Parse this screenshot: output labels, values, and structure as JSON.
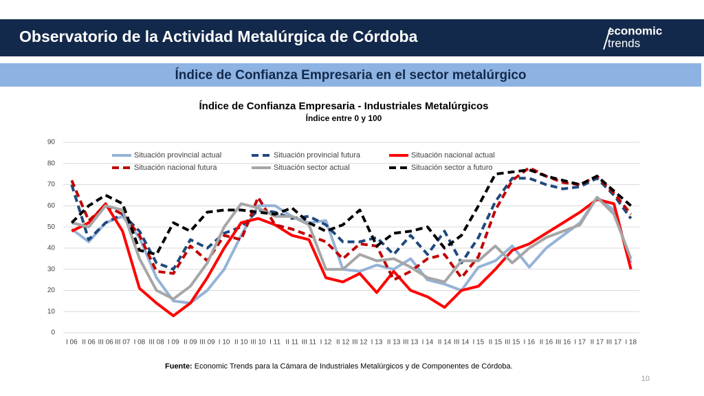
{
  "header": {
    "title": "Observatorio de la Actividad Metalúrgica de Córdoba",
    "logo_line1": "economic",
    "logo_line2": "trends"
  },
  "banner": "Índice de Confianza Empresaria en el sector metalúrgico",
  "chart_data": {
    "type": "line",
    "title": "Índice de Confianza Empresaria - Industriales Metalúrgicos",
    "subtitle": "Índice entre 0 y 100",
    "categories": [
      "I 06",
      "II 06",
      "III 06",
      "III 07",
      "I 08",
      "III 08",
      "I 09",
      "II 09",
      "III 09",
      "I 10",
      "II 10",
      "III 10",
      "I 11",
      "II 11",
      "III 11",
      "I 12",
      "II 12",
      "III 12",
      "I 13",
      "II 13",
      "III 13",
      "I 14",
      "II 14",
      "III 14",
      "I 15",
      "II 15",
      "III 15",
      "I 16",
      "II 16",
      "III 16",
      "I 17",
      "II 17",
      "III 17",
      "I 18"
    ],
    "series": [
      {
        "name": "Situación provincial actual",
        "color": "#95b3d7",
        "dash": false,
        "values": [
          49,
          43,
          52,
          55,
          45,
          26,
          15,
          14,
          20,
          30,
          46,
          60,
          60,
          55,
          52,
          53,
          30,
          29,
          32,
          30,
          35,
          25,
          23,
          20,
          31,
          34,
          41,
          31,
          40,
          46,
          52,
          64,
          58,
          33
        ]
      },
      {
        "name": "Situación provincial futura",
        "color": "#1f497d",
        "dash": true,
        "values": [
          70,
          44,
          52,
          56,
          48,
          33,
          30,
          44,
          40,
          47,
          50,
          58,
          57,
          54,
          55,
          51,
          43,
          43,
          45,
          37,
          46,
          37,
          48,
          33,
          45,
          62,
          73,
          73,
          70,
          68,
          69,
          73,
          65,
          54
        ]
      },
      {
        "name": "Situación nacional actual",
        "color": "#ff0000",
        "dash": false,
        "values": [
          48,
          52,
          61,
          48,
          21,
          14,
          8,
          14,
          26,
          40,
          52,
          54,
          51,
          46,
          44,
          26,
          24,
          28,
          19,
          29,
          20,
          17,
          12,
          20,
          22,
          30,
          39,
          42,
          47,
          52,
          57,
          63,
          61,
          30
        ]
      },
      {
        "name": "Situación nacional futura",
        "color": "#c00000",
        "dash": true,
        "values": [
          72,
          53,
          60,
          56,
          46,
          29,
          28,
          41,
          34,
          46,
          44,
          64,
          51,
          49,
          46,
          43,
          35,
          42,
          41,
          25,
          29,
          35,
          37,
          26,
          36,
          58,
          72,
          78,
          74,
          71,
          70,
          74,
          66,
          56
        ]
      },
      {
        "name": "Situación sector actual",
        "color": "#a6a6a6",
        "dash": false,
        "values": [
          52,
          50,
          60,
          58,
          35,
          20,
          16,
          22,
          33,
          50,
          61,
          59,
          55,
          55,
          51,
          30,
          30,
          37,
          34,
          35,
          31,
          26,
          24,
          34,
          34,
          41,
          33,
          40,
          45,
          48,
          51,
          64,
          56,
          35
        ]
      },
      {
        "name": "Situación sector a futuro",
        "color": "#000000",
        "dash": true,
        "values": [
          52,
          60,
          65,
          61,
          39,
          37,
          52,
          48,
          57,
          58,
          58,
          57,
          56,
          59,
          52,
          48,
          51,
          58,
          41,
          47,
          48,
          50,
          40,
          46,
          60,
          75,
          76,
          77,
          74,
          72,
          70,
          74,
          67,
          60
        ]
      }
    ],
    "ylim": [
      0,
      90
    ],
    "yticks": [
      0,
      10,
      20,
      30,
      40,
      50,
      60,
      70,
      80,
      90
    ],
    "grid": true,
    "legend": "top"
  },
  "footer": {
    "label": "Fuente:",
    "text": "Economic Trends para la Cámara de Industriales Metalúrgicos y de Componentes de Córdoba."
  },
  "page_number": "10"
}
